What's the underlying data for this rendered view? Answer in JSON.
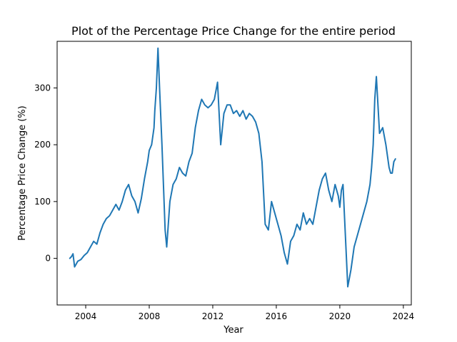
{
  "chart_data": {
    "type": "line",
    "title": "Plot of the Percentage Price Change for the entire period",
    "xlabel": "Year",
    "ylabel": "Percentage Price Change (%)",
    "x_ticks": [
      2004,
      2008,
      2012,
      2016,
      2020,
      2024
    ],
    "y_ticks": [
      0,
      100,
      200,
      300
    ],
    "xlim": [
      2002.2,
      2024.5
    ],
    "ylim": [
      -82,
      382
    ],
    "grid": false,
    "legend": "none",
    "colors": {
      "line": "#1f77b4",
      "axes": "#000000",
      "background": "#ffffff"
    },
    "series": [
      {
        "x": [
          2003.0,
          2003.1,
          2003.2,
          2003.3,
          2003.4,
          2003.5,
          2003.7,
          2003.9,
          2004.1,
          2004.3,
          2004.5,
          2004.7,
          2004.9,
          2005.1,
          2005.3,
          2005.5,
          2005.7,
          2005.9,
          2006.1,
          2006.3,
          2006.5,
          2006.7,
          2006.9,
          2007.1,
          2007.3,
          2007.5,
          2007.7,
          2007.9,
          2008.0,
          2008.15,
          2008.3,
          2008.35,
          2008.45,
          2008.55,
          2008.65,
          2008.8,
          2009.0,
          2009.1,
          2009.3,
          2009.5,
          2009.7,
          2009.9,
          2010.1,
          2010.3,
          2010.5,
          2010.7,
          2010.9,
          2011.1,
          2011.3,
          2011.5,
          2011.7,
          2011.9,
          2012.1,
          2012.3,
          2012.5,
          2012.7,
          2012.9,
          2013.1,
          2013.3,
          2013.5,
          2013.7,
          2013.9,
          2014.1,
          2014.3,
          2014.5,
          2014.7,
          2014.9,
          2015.1,
          2015.3,
          2015.5,
          2015.7,
          2015.9,
          2016.1,
          2016.3,
          2016.5,
          2016.7,
          2016.9,
          2017.1,
          2017.3,
          2017.5,
          2017.7,
          2017.9,
          2018.1,
          2018.3,
          2018.5,
          2018.7,
          2018.9,
          2019.1,
          2019.3,
          2019.5,
          2019.7,
          2019.9,
          2020.0,
          2020.1,
          2020.2,
          2020.3,
          2020.5,
          2020.7,
          2020.9,
          2021.1,
          2021.3,
          2021.5,
          2021.7,
          2021.9,
          2022.0,
          2022.1,
          2022.2,
          2022.3,
          2022.5,
          2022.7,
          2022.9,
          2023.0,
          2023.1,
          2023.2,
          2023.3,
          2023.4,
          2023.5
        ],
        "y": [
          0,
          3,
          8,
          -15,
          -10,
          -5,
          -2,
          5,
          10,
          20,
          30,
          25,
          45,
          60,
          70,
          75,
          85,
          95,
          85,
          100,
          120,
          130,
          110,
          100,
          80,
          105,
          140,
          170,
          190,
          200,
          230,
          260,
          300,
          370,
          300,
          200,
          50,
          20,
          100,
          130,
          140,
          160,
          150,
          145,
          170,
          185,
          230,
          260,
          280,
          270,
          265,
          270,
          280,
          310,
          200,
          255,
          270,
          270,
          255,
          260,
          250,
          260,
          245,
          255,
          250,
          240,
          220,
          170,
          60,
          50,
          100,
          80,
          60,
          40,
          10,
          -10,
          30,
          40,
          60,
          50,
          80,
          60,
          70,
          60,
          90,
          120,
          140,
          150,
          120,
          100,
          130,
          110,
          90,
          120,
          130,
          70,
          -50,
          -20,
          20,
          40,
          60,
          80,
          100,
          130,
          160,
          200,
          280,
          320,
          220,
          230,
          200,
          180,
          160,
          150,
          150,
          170,
          175
        ]
      }
    ]
  }
}
